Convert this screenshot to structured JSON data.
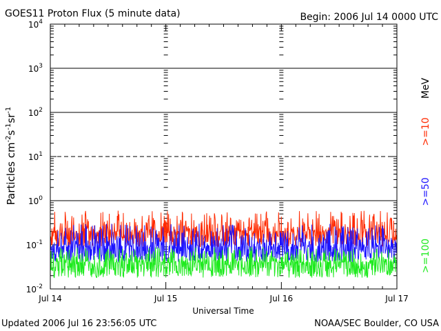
{
  "chart_data": {
    "type": "line",
    "title": "GOES11 Proton Flux (5 minute data)",
    "begin_label": "Begin: 2006 Jul 14 0000 UTC",
    "xlabel": "Universal Time",
    "ylabel": "Particles cm⁻²s⁻¹sr⁻¹",
    "ylabel_parts": {
      "base": "Particles cm",
      "sup1": "-2",
      "mid1": "s",
      "sup2": "-1",
      "mid2": "sr",
      "sup3": "-1"
    },
    "y_scale": "log",
    "ylim": [
      0.01,
      10000
    ],
    "xlim_hours": [
      0,
      72
    ],
    "x_ticks": [
      "Jul 14",
      "Jul 15",
      "Jul 16",
      "Jul 17"
    ],
    "y_ticks": [
      {
        "base": "10",
        "exp": "-2"
      },
      {
        "base": "10",
        "exp": "-1"
      },
      {
        "base": "10",
        "exp": "0"
      },
      {
        "base": "10",
        "exp": "1"
      },
      {
        "base": "10",
        "exp": "2"
      },
      {
        "base": "10",
        "exp": "3"
      },
      {
        "base": "10",
        "exp": "4"
      }
    ],
    "unit": "MeV",
    "series": [
      {
        "name": ">=10",
        "color": "#ff2a00",
        "typical": 0.2,
        "range": [
          0.09,
          0.6
        ]
      },
      {
        "name": ">=50",
        "color": "#1c14ff",
        "typical": 0.09,
        "range": [
          0.04,
          0.3
        ]
      },
      {
        "name": ">=100",
        "color": "#1eea1e",
        "typical": 0.04,
        "range": [
          0.018,
          0.09
        ]
      }
    ],
    "thresholds": [
      {
        "value": 1,
        "style": "solid"
      },
      {
        "value": 10,
        "style": "dashed"
      },
      {
        "value": 100,
        "style": "solid"
      }
    ],
    "grid": true
  },
  "footer": {
    "updated": "Updated 2006 Jul 16 23:56:05 UTC",
    "source": "NOAA/SEC Boulder, CO USA"
  }
}
